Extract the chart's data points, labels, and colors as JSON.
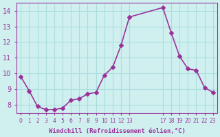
{
  "x": [
    0,
    1,
    2,
    3,
    4,
    5,
    6,
    7,
    8,
    9,
    10,
    11,
    12,
    13,
    17,
    18,
    19,
    20,
    21,
    22,
    23
  ],
  "y": [
    9.8,
    8.9,
    7.9,
    7.7,
    7.7,
    7.8,
    8.3,
    8.4,
    8.7,
    8.8,
    9.9,
    10.4,
    11.8,
    13.6,
    14.2,
    12.6,
    11.1,
    10.3,
    10.2,
    9.1,
    8.8
  ],
  "line_color": "#993399",
  "marker": "D",
  "markersize": 3,
  "linewidth": 1.2,
  "bg_color": "#d0f0f0",
  "grid_color": "#aadddd",
  "xlabel": "Windchill (Refroidissement éolien,°C)",
  "xlabel_color": "#993399",
  "tick_color": "#993399",
  "ylim": [
    7.5,
    14.5
  ],
  "xlim": [
    -0.5,
    23.5
  ],
  "yticks": [
    8,
    9,
    10,
    11,
    12,
    13,
    14
  ],
  "xtick_positions": [
    0,
    1,
    2,
    3,
    4,
    5,
    6,
    7,
    8,
    9,
    10,
    11,
    12,
    13,
    17,
    18,
    19,
    20,
    21,
    22,
    23
  ],
  "xtick_labels": [
    "0",
    "1",
    "2",
    "3",
    "4",
    "5",
    "6",
    "7",
    "8",
    "9",
    "10",
    "11",
    "12",
    "13",
    "17",
    "18",
    "19",
    "20",
    "21",
    "22",
    "23"
  ]
}
